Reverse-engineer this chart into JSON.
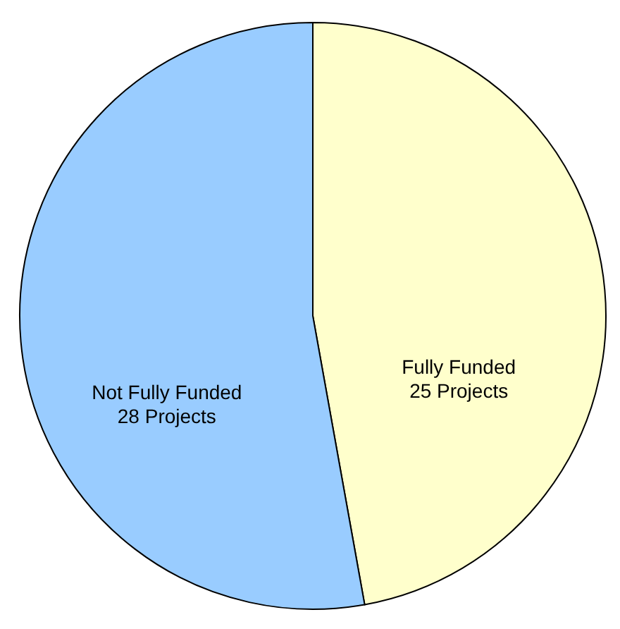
{
  "chart_data": {
    "type": "pie",
    "categories": [
      "Fully Funded",
      "Not Fully Funded"
    ],
    "values": [
      25,
      28
    ],
    "colors": [
      "#ffffcc",
      "#99ccff"
    ],
    "value_labels": [
      "25 Projects",
      "28 Projects"
    ],
    "legend": false
  }
}
